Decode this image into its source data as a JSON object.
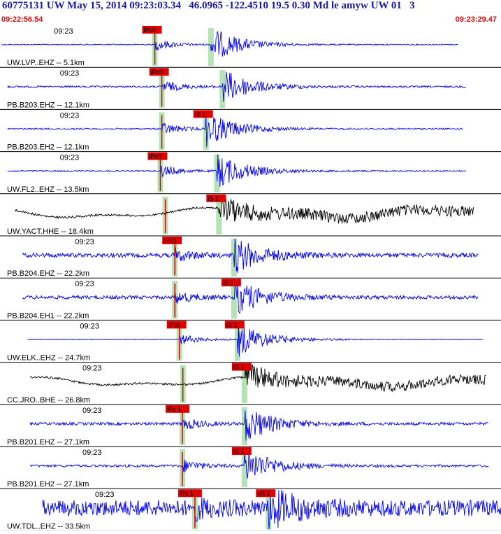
{
  "header": {
    "title": "60775131 UW May 15, 2014 09:23:03.34   46.0965 -122.4510 19.5 0.30 Md le amyw UW 01   3",
    "time_start": "09:22:56.54",
    "time_end": "09:23:29.47"
  },
  "colors": {
    "title": "#1a1aa0",
    "time_label": "#d01010",
    "trace_blue": "#0000ee",
    "trace_black": "#000000",
    "pick_box": "#e00000",
    "window_band": "#b5e3b5"
  },
  "traces": [
    {
      "label": "UW.LVP..EHZ -- 5.1km",
      "time_tick": "09:23",
      "color": "blue",
      "mode": "noise",
      "amp": 0.03,
      "p_pick": "iPc0",
      "s_pick": null,
      "p_t": 0.309,
      "s_t": 0.421,
      "end_t": 0.915,
      "start_t": 0.003
    },
    {
      "label": "PB.B203.EHZ -- 12.1km",
      "time_tick": "09:23",
      "color": "blue",
      "mode": "noise",
      "amp": 0.05,
      "p_pick": "iPc0",
      "s_pick": null,
      "p_t": 0.323,
      "s_t": 0.444,
      "end_t": 0.93,
      "start_t": 0.015
    },
    {
      "label": "PB.B203.EH2 -- 12.1km",
      "time_tick": "09:23",
      "color": "blue",
      "mode": "noise",
      "amp": 0.04,
      "p_pick": null,
      "s_pick": "iS 1",
      "p_t": 0.323,
      "s_t": 0.411,
      "end_t": 0.925,
      "start_t": 0.015
    },
    {
      "label": "UW.FL2..EHZ -- 13.5km",
      "time_tick": "09:23",
      "color": "blue",
      "mode": "noise",
      "amp": 0.04,
      "p_pick": "iPc0",
      "s_pick": null,
      "p_t": 0.32,
      "s_t": 0.433,
      "end_t": 0.93,
      "start_t": 0.015
    },
    {
      "label": "UW.YACT.HHE -- 18.4km",
      "time_tick": "",
      "color": "black",
      "mode": "drift",
      "amp": 0.45,
      "p_pick": null,
      "s_pick": "iS 1",
      "p_t": 0.33,
      "s_t": 0.437,
      "end_t": 0.945,
      "start_t": 0.03
    },
    {
      "label": "PB.B204.EHZ -- 22.2km",
      "time_tick": "09:23",
      "color": "blue",
      "mode": "noise",
      "amp": 0.12,
      "p_pick": "iPc0",
      "s_pick": null,
      "p_t": 0.349,
      "s_t": 0.467,
      "end_t": 0.955,
      "start_t": 0.045
    },
    {
      "label": "PB.B204.EH1 -- 22.2km",
      "time_tick": "09:23",
      "color": "blue",
      "mode": "noise",
      "amp": 0.1,
      "p_pick": null,
      "s_pick": "iS 1",
      "p_t": 0.349,
      "s_t": 0.467,
      "end_t": 0.955,
      "start_t": 0.045
    },
    {
      "label": "UW.ELK..EHZ -- 24.7km",
      "time_tick": "09:23",
      "color": "blue",
      "mode": "noise",
      "amp": 0.02,
      "p_pick": "iPc0",
      "s_pick": "iS 1",
      "p_t": 0.358,
      "s_t": 0.474,
      "end_t": 0.965,
      "start_t": 0.055
    },
    {
      "label": "CC.JRO..BHE -- 26.8km",
      "time_tick": "09:23",
      "color": "black",
      "mode": "drift",
      "amp": 0.4,
      "p_pick": null,
      "s_pick": "iS 1",
      "p_t": 0.365,
      "s_t": 0.488,
      "end_t": 0.97,
      "start_t": 0.06
    },
    {
      "label": "PB.B201.EHZ -- 27.1km",
      "time_tick": "09:23",
      "color": "blue",
      "mode": "noise",
      "amp": 0.08,
      "p_pick": "iPc 1",
      "s_pick": null,
      "p_t": 0.364,
      "s_t": 0.488,
      "end_t": 0.975,
      "start_t": 0.06
    },
    {
      "label": "PB.B201.EH2 -- 27.1km",
      "time_tick": "09:23",
      "color": "blue",
      "mode": "noise",
      "amp": 0.07,
      "p_pick": null,
      "s_pick": "iS 1",
      "p_t": 0.364,
      "s_t": 0.488,
      "end_t": 0.975,
      "start_t": 0.06
    },
    {
      "label": "UW.TDL..EHZ -- 33.5km",
      "time_tick": "09:23",
      "color": "blue",
      "mode": "noise",
      "amp": 0.45,
      "p_pick": "iPc 1",
      "s_pick": "eS 2",
      "p_t": 0.389,
      "s_t": 0.536,
      "end_t": 1.0,
      "start_t": 0.085
    }
  ]
}
